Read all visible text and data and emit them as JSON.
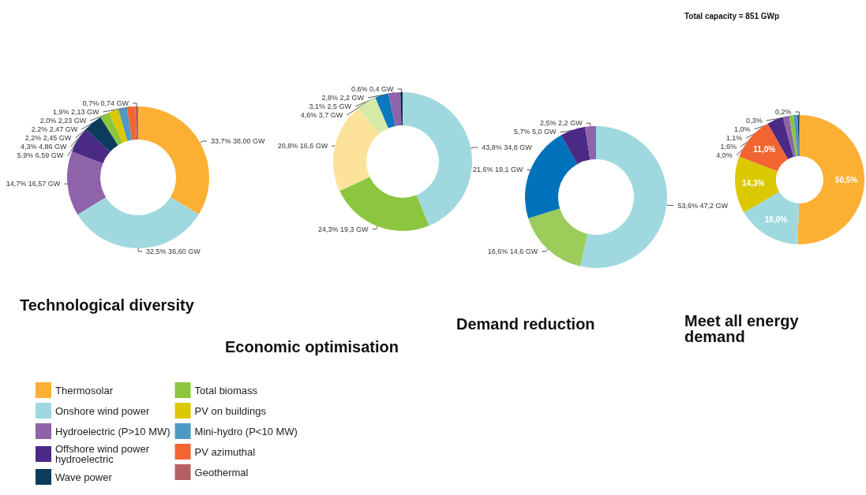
{
  "chart_data": [
    {
      "type": "donut",
      "title": "Technological diversity",
      "categories": [
        "Thermosolar",
        "Onshore wind power",
        "Hydroelectric (P>10 MW)",
        "Offshore wind power hydroelectric",
        "Wave power",
        "Total biomass",
        "PV on buildings",
        "Mini-hydro (P<10 MW)",
        "PV azimuthal",
        "Geothermal"
      ],
      "values": [
        38.0,
        36.6,
        16.57,
        6.59,
        4.86,
        2.45,
        2.47,
        2.23,
        2.13,
        0.74
      ],
      "colors": [
        "#fbb034",
        "#9fd9df",
        "#8e63aa",
        "#4b2a85",
        "#0b3c5d",
        "#8cc63f",
        "#dcc800",
        "#4f9ac3",
        "#f26532",
        "#b65f62"
      ],
      "value_labels": [
        "33,7% 38,00 GW",
        "32,5% 36,60 GW",
        "14,7% 16,57 GW",
        "5,9% 6,59 GW",
        "4,3% 4,86 GW",
        "2,2% 2,45 GW",
        "2,2% 2,47 GW",
        "2,0% 2,23 GW",
        "1,9% 2,13 GW",
        "0,7% 0,74 GW"
      ],
      "legend": "bottom"
    },
    {
      "type": "donut",
      "title": "Economic optimisation",
      "categories": [
        null,
        null,
        null,
        null,
        null,
        null,
        null
      ],
      "values": [
        34.8,
        19.3,
        16.6,
        3.7,
        2.5,
        2.2,
        0.4
      ],
      "colors": [
        "#9fd9df",
        "#8cc63f",
        "#fde29a",
        "#d6eaa8",
        "#0b78c0",
        "#8e63aa",
        "#0b2c4f"
      ],
      "value_labels": [
        "43,8% 34,8 GW",
        "24,3% 19,3 GW",
        "20,8% 16,6 GW",
        "4,6% 3,7 GW",
        "3,1% 2,5 GW",
        "2,8% 2,2 GW",
        "0,6% 0,4 GW"
      ]
    },
    {
      "type": "donut",
      "title": "Demand reduction",
      "categories": [
        null,
        null,
        null,
        null,
        null
      ],
      "values": [
        47.2,
        14.6,
        19.1,
        5.0,
        2.2
      ],
      "colors": [
        "#9fd9df",
        "#9ccc5a",
        "#0072bc",
        "#4b2a85",
        "#8e63aa"
      ],
      "value_labels": [
        "53,6% 47,2 GW",
        "16,6% 14,6 GW",
        "21,6% 19,1 GW",
        "5,7% 5,0 GW",
        "2,5% 2,2 GW"
      ]
    },
    {
      "type": "donut",
      "title": "Meet all energy demand",
      "subtitle": "Total capacity = 851 GWp",
      "categories": [
        null,
        null,
        null,
        null,
        null,
        null,
        null,
        null,
        null,
        null
      ],
      "values": [
        50.5,
        16.0,
        14.3,
        11.0,
        4.0,
        1.6,
        1.1,
        1.0,
        0.3,
        0.2
      ],
      "colors": [
        "#fbb034",
        "#9fd9df",
        "#dcc800",
        "#f26532",
        "#4b2a85",
        "#8e63aa",
        "#8cc63f",
        "#4f9ac3",
        "#0b3c5d",
        "#b65f62"
      ],
      "value_labels": [
        "50,5%",
        "16,0%",
        "14,3%",
        "11,0%",
        "4,0%",
        "1,6%",
        "1,1%",
        "1,0%",
        "0,3%",
        "0,2%"
      ]
    }
  ]
}
